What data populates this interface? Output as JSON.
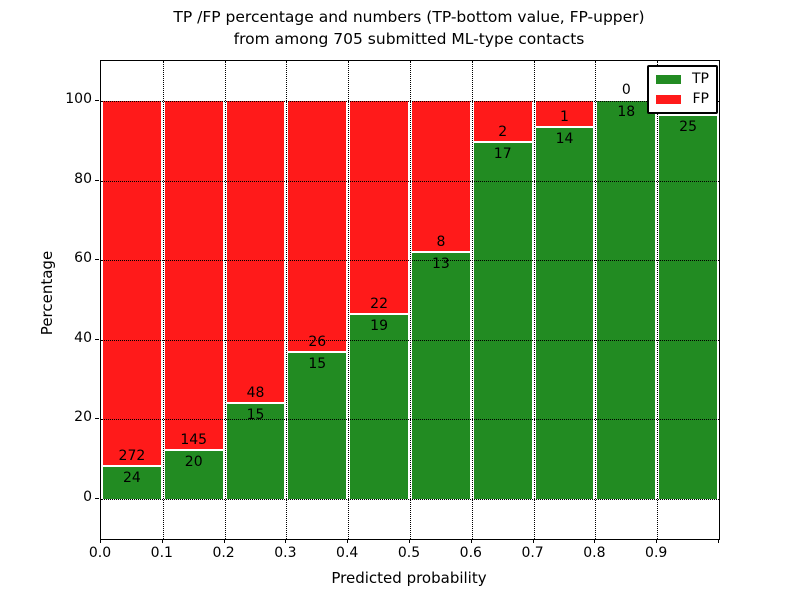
{
  "title": {
    "line1": "TP /FP percentage and numbers (TP-bottom value, FP-upper)",
    "line2": "from among 705 submitted ML-type contacts"
  },
  "axes": {
    "xlabel": "Predicted probability",
    "ylabel": "Percentage",
    "x_tick_labels": [
      "0.0",
      "0.1",
      "0.2",
      "0.3",
      "0.4",
      "0.5",
      "0.6",
      "0.7",
      "0.8",
      "0.9"
    ],
    "y_tick_labels": [
      "0",
      "20",
      "40",
      "60",
      "80",
      "100"
    ],
    "y_tick_values": [
      0,
      20,
      40,
      60,
      80,
      100
    ],
    "xlim": [
      0.0,
      1.0
    ],
    "ylim": [
      -10,
      110
    ]
  },
  "legend": {
    "items": [
      {
        "label": "TP",
        "color": "#228B22"
      },
      {
        "label": "FP",
        "color": "#FF1A1A"
      }
    ]
  },
  "chart_data": {
    "type": "bar",
    "stacked": true,
    "normalized_to_percent": true,
    "title": "TP /FP percentage and numbers (TP-bottom value, FP-upper) from among 705 submitted ML-type contacts",
    "xlabel": "Predicted probability",
    "ylabel": "Percentage",
    "total_contacts": 705,
    "bins": [
      "0.0-0.1",
      "0.1-0.2",
      "0.2-0.3",
      "0.3-0.4",
      "0.4-0.5",
      "0.5-0.6",
      "0.6-0.7",
      "0.7-0.8",
      "0.8-0.9",
      "0.9-1.0"
    ],
    "series": [
      {
        "name": "TP",
        "color": "#228B22",
        "counts": [
          24,
          20,
          15,
          15,
          19,
          13,
          17,
          14,
          18,
          25
        ],
        "percent": [
          8.1,
          12.1,
          23.8,
          36.6,
          46.3,
          61.9,
          89.5,
          93.3,
          100.0,
          96.2
        ]
      },
      {
        "name": "FP",
        "color": "#FF1A1A",
        "counts": [
          272,
          145,
          48,
          26,
          22,
          8,
          2,
          1,
          0,
          1
        ],
        "percent": [
          91.9,
          87.9,
          76.2,
          63.4,
          53.7,
          38.1,
          10.5,
          6.7,
          0.0,
          3.8
        ]
      }
    ],
    "bar_value_labels": {
      "tp": [
        "24",
        "20",
        "15",
        "15",
        "19",
        "13",
        "17",
        "14",
        "18",
        "25"
      ],
      "fp": [
        "272",
        "145",
        "48",
        "26",
        "22",
        "8",
        "2",
        "1",
        "0",
        ""
      ]
    },
    "grid": true,
    "legend_position": "upper right"
  },
  "colors": {
    "tp": "#228B22",
    "fp": "#FF1A1A",
    "grid": "#000000",
    "frame": "#000000",
    "background": "#FFFFFF"
  }
}
